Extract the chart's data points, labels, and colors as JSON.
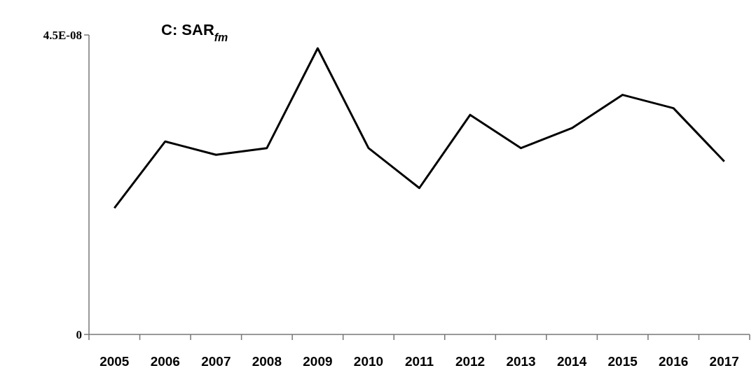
{
  "chart_data": {
    "type": "line",
    "title": "C: SAR$_{fm}$",
    "categories": [
      "2005",
      "2006",
      "2007",
      "2008",
      "2009",
      "2010",
      "2011",
      "2012",
      "2013",
      "2014",
      "2015",
      "2016",
      "2017"
    ],
    "series": [
      {
        "color": "#000000",
        "values": [
          1.9e-08,
          2.9e-08,
          2.7e-08,
          2.8e-08,
          4.3e-08,
          2.8e-08,
          2.2e-08,
          3.3e-08,
          2.8e-08,
          3.1e-08,
          3.6e-08,
          3.4e-08,
          2.6e-08
        ]
      }
    ],
    "ylim": [
      0,
      4.5e-08
    ],
    "yticks": [
      0,
      {
        "value": 4.5e-08,
        "label": "4.5E-08"
      }
    ],
    "grid": false,
    "marker": "none",
    "line_style": "solid"
  }
}
